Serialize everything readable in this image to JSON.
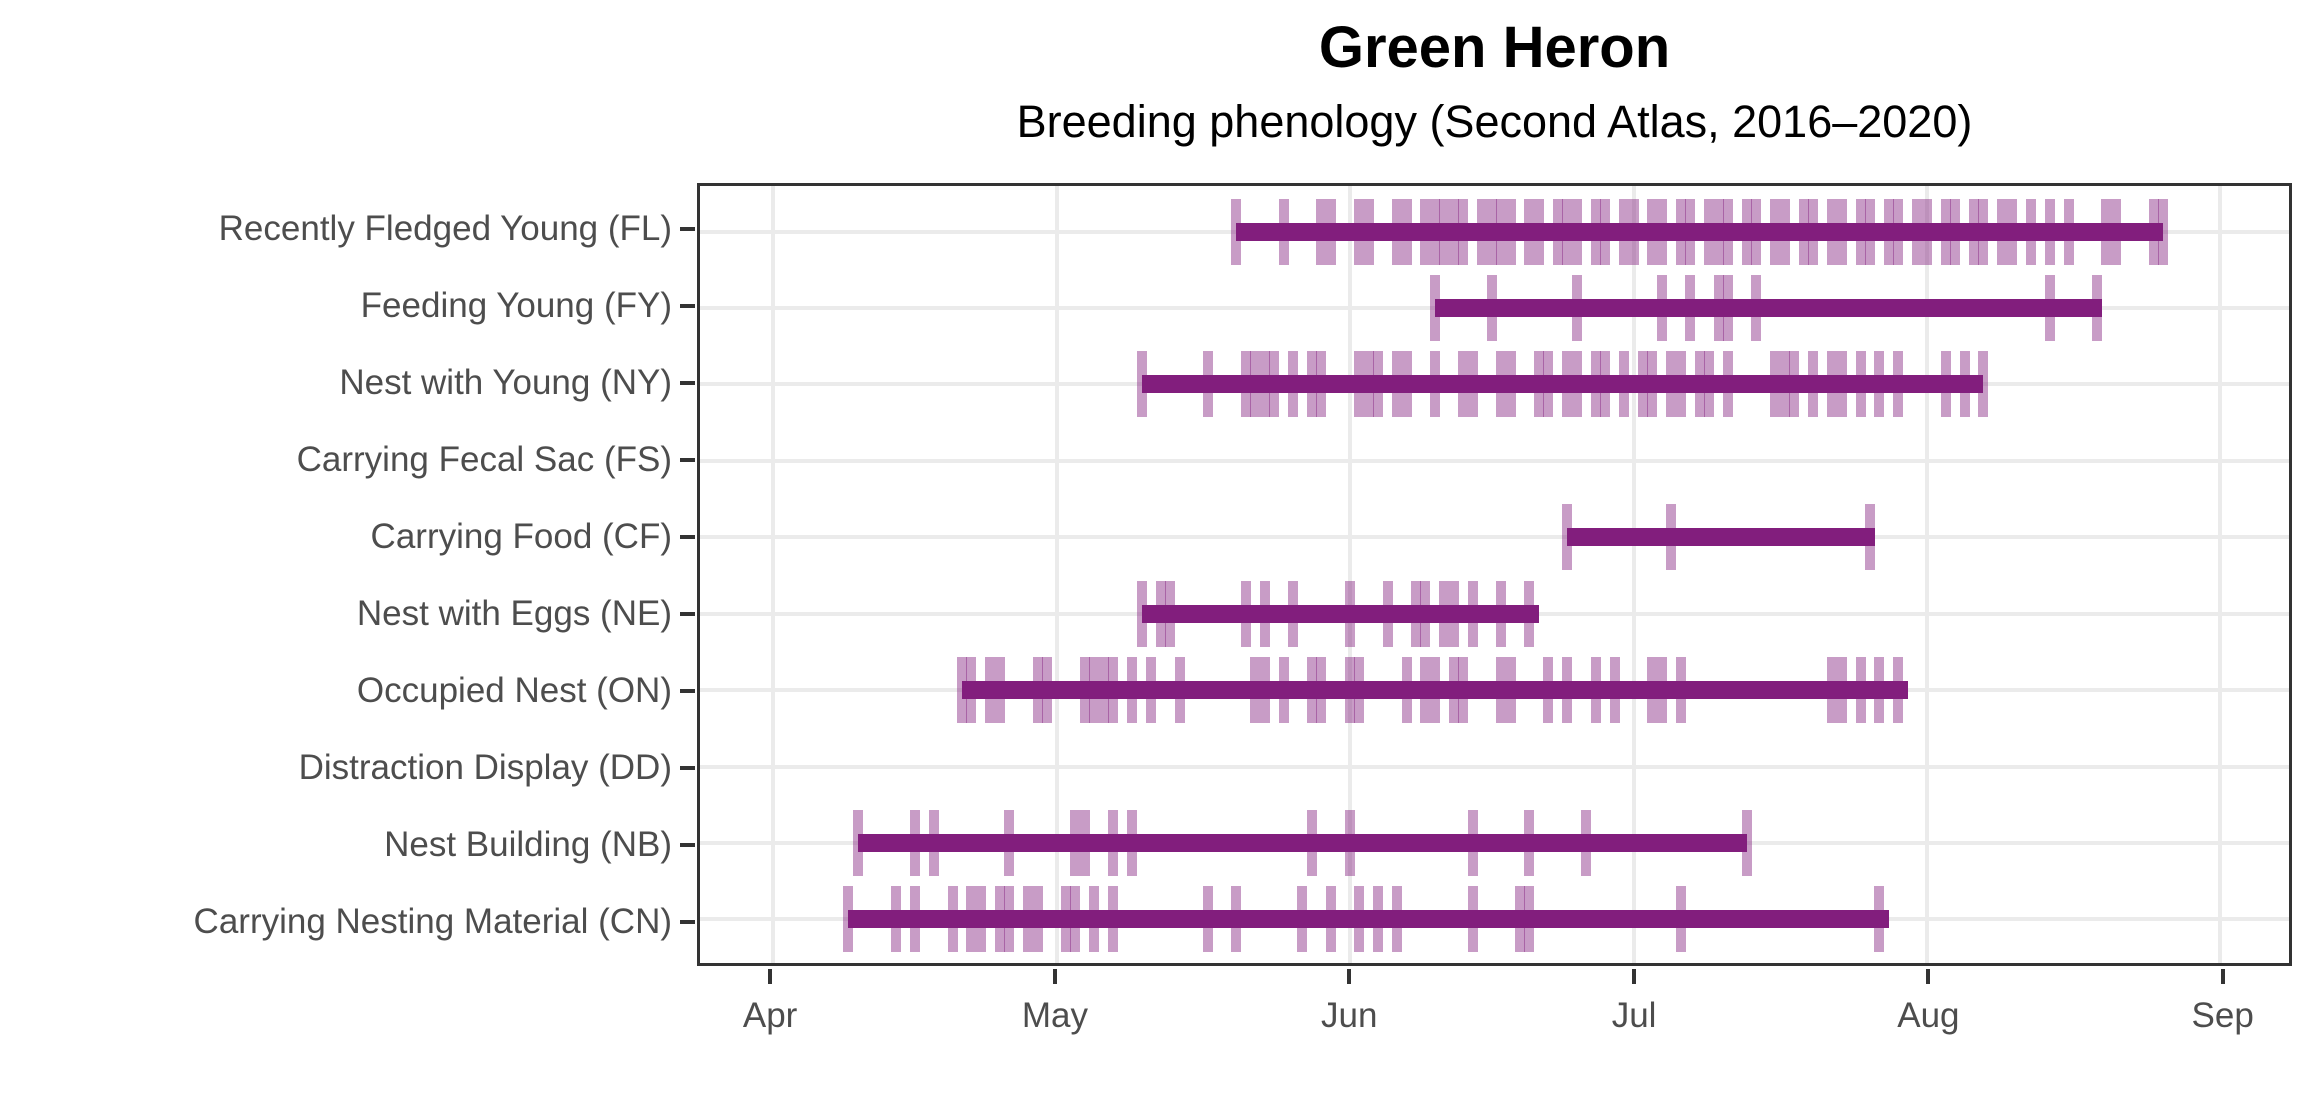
{
  "title": "Green Heron",
  "subtitle": "Breeding phenology (Second Atlas, 2016–2020)",
  "colors": {
    "bar": "#821E7D",
    "observation_tick": "rgba(130,30,125,0.44)",
    "gridline": "#EBEBEB",
    "axis_text": "#4D4D4D",
    "axis_tick_mark": "#333333",
    "panel_border": "#333333",
    "title_text": "#000000"
  },
  "chart_data": {
    "type": "bar",
    "variant": "horizontal-range-timeline (phenology chart: one row per breeding code; solid bar = overall span, translucent vertical ticks = individual observation dates)",
    "title": "Green Heron",
    "subtitle": "Breeding phenology (Second Atlas, 2016–2020)",
    "xlabel": "",
    "ylabel": "",
    "grid": true,
    "legend": "none",
    "x_axis": {
      "unit": "date (day offset from Apr 1)",
      "tick_labels": [
        "Apr",
        "May",
        "Jun",
        "Jul",
        "Aug",
        "Sep"
      ],
      "tick_day_offsets": [
        0,
        30,
        61,
        91,
        122,
        153
      ],
      "domain_day_offsets": [
        -7.7,
        160.3
      ]
    },
    "categories": [
      "Recently Fledged Young (FL)",
      "Feeding Young (FY)",
      "Nest with Young (NY)",
      "Carrying Fecal Sac (FS)",
      "Carrying Food (CF)",
      "Nest with Eggs (NE)",
      "Occupied Nest (ON)",
      "Distraction Display (DD)",
      "Nest Building (NB)",
      "Carrying Nesting Material (CN)"
    ],
    "rows": [
      {
        "label": "Recently Fledged Young (FL)",
        "code": "FL",
        "range_days": [
          49,
          147
        ],
        "range_dates": [
          "May 20",
          "Aug 26"
        ],
        "observation_ticks_days": [
          49,
          54,
          58,
          59,
          62,
          63,
          66,
          67,
          69,
          70,
          71,
          72,
          73,
          75,
          76,
          77,
          78,
          80,
          81,
          83,
          84,
          85,
          87,
          88,
          90,
          91,
          93,
          94,
          96,
          97,
          99,
          100,
          101,
          103,
          104,
          106,
          107,
          109,
          110,
          112,
          113,
          115,
          116,
          118,
          119,
          121,
          122,
          124,
          125,
          127,
          128,
          130,
          131,
          133,
          135,
          137,
          141,
          142,
          146,
          147
        ]
      },
      {
        "label": "Feeding Young (FY)",
        "code": "FY",
        "range_days": [
          70,
          140.5
        ],
        "range_dates": [
          "Jun 10",
          "Aug 19"
        ],
        "observation_ticks_days": [
          70,
          76,
          85,
          94,
          97,
          100,
          101,
          104,
          135,
          140
        ]
      },
      {
        "label": "Nest with Young (NY)",
        "code": "NY",
        "range_days": [
          39,
          128
        ],
        "range_dates": [
          "May 10",
          "Aug 7"
        ],
        "observation_ticks_days": [
          39,
          46,
          50,
          51,
          52,
          53,
          55,
          57,
          58,
          62,
          63,
          64,
          66,
          67,
          70,
          73,
          74,
          77,
          78,
          81,
          82,
          84,
          85,
          87,
          88,
          90,
          92,
          93,
          95,
          96,
          98,
          99,
          101,
          106,
          107,
          108,
          110,
          112,
          113,
          115,
          117,
          119,
          124,
          126,
          128
        ]
      },
      {
        "label": "Carrying Fecal Sac (FS)",
        "code": "FS",
        "range_days": null,
        "range_dates": null,
        "observation_ticks_days": []
      },
      {
        "label": "Carrying Food (CF)",
        "code": "CF",
        "range_days": [
          84,
          116.5
        ],
        "range_dates": [
          "Jun 24",
          "Jul 26"
        ],
        "observation_ticks_days": [
          84,
          95,
          116
        ]
      },
      {
        "label": "Nest with Eggs (NE)",
        "code": "NE",
        "range_days": [
          39,
          81
        ],
        "range_dates": [
          "May 10",
          "Jun 21"
        ],
        "observation_ticks_days": [
          39,
          41,
          42,
          50,
          52,
          55,
          61,
          65,
          68,
          69,
          71,
          72,
          74,
          77,
          80
        ]
      },
      {
        "label": "Occupied Nest (ON)",
        "code": "ON",
        "range_days": [
          20,
          120
        ],
        "range_dates": [
          "Apr 21",
          "Jul 30"
        ],
        "observation_ticks_days": [
          20,
          21,
          23,
          24,
          28,
          29,
          33,
          34,
          35,
          36,
          38,
          40,
          43,
          51,
          52,
          54,
          57,
          58,
          61,
          62,
          67,
          69,
          70,
          72,
          73,
          77,
          78,
          82,
          84,
          87,
          89,
          93,
          94,
          96,
          112,
          113,
          115,
          117,
          119
        ]
      },
      {
        "label": "Distraction Display (DD)",
        "code": "DD",
        "range_days": null,
        "range_dates": null,
        "observation_ticks_days": []
      },
      {
        "label": "Nest Building (NB)",
        "code": "NB",
        "range_days": [
          9,
          103
        ],
        "range_dates": [
          "Apr 10",
          "Jul 13"
        ],
        "observation_ticks_days": [
          9,
          15,
          17,
          25,
          32,
          33,
          36,
          38,
          57,
          61,
          74,
          80,
          86,
          103
        ]
      },
      {
        "label": "Carrying Nesting Material (CN)",
        "code": "CN",
        "range_days": [
          8,
          118
        ],
        "range_dates": [
          "Apr 9",
          "Jul 28"
        ],
        "observation_ticks_days": [
          8,
          13,
          15,
          19,
          21,
          22,
          24,
          25,
          27,
          28,
          31,
          32,
          34,
          36,
          46,
          49,
          56,
          59,
          62,
          64,
          66,
          74,
          79,
          80,
          96,
          117
        ]
      }
    ]
  }
}
